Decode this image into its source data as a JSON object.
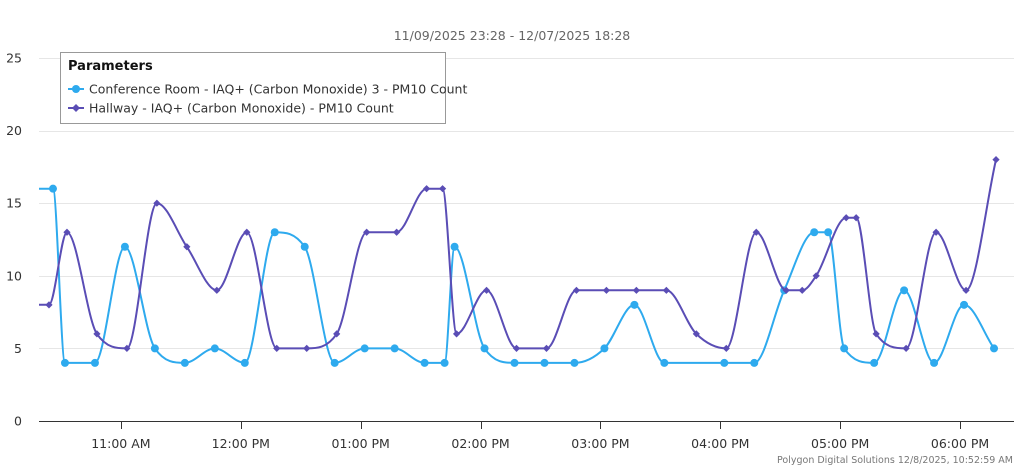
{
  "chart_data": {
    "type": "line",
    "subtitle": "11/09/2025 23:28 - 12/07/2025 18:28",
    "credits": "Polygon Digital Solutions 12/8/2025, 10:52:59 AM",
    "legend_title": "Parameters",
    "legend_position": "top-left",
    "grid": true,
    "ylim": [
      0,
      25
    ],
    "y_ticks": [
      "0",
      "5",
      "10",
      "15",
      "20",
      "25"
    ],
    "x_ticks": [
      {
        "label": "11:00 AM",
        "t": "11:00"
      },
      {
        "label": "12:00 PM",
        "t": "12:00"
      },
      {
        "label": "01:00 PM",
        "t": "13:00"
      },
      {
        "label": "02:00 PM",
        "t": "14:00"
      },
      {
        "label": "03:00 PM",
        "t": "15:00"
      },
      {
        "label": "04:00 PM",
        "t": "16:00"
      },
      {
        "label": "05:00 PM",
        "t": "17:00"
      },
      {
        "label": "06:00 PM",
        "t": "18:00"
      }
    ],
    "xlim": [
      "10:19",
      "18:27"
    ],
    "series": [
      {
        "name": "Conference Room - IAQ+ (Carbon Monoxide) 3 - PM10 Count",
        "color": "#2eaaee",
        "marker": "circle",
        "points": [
          {
            "t": "10:19",
            "y": 16
          },
          {
            "t": "10:26",
            "y": 16
          },
          {
            "t": "10:32",
            "y": 4
          },
          {
            "t": "10:47",
            "y": 4
          },
          {
            "t": "11:02",
            "y": 12
          },
          {
            "t": "11:17",
            "y": 5
          },
          {
            "t": "11:32",
            "y": 4
          },
          {
            "t": "11:47",
            "y": 5
          },
          {
            "t": "12:02",
            "y": 4
          },
          {
            "t": "12:17",
            "y": 13
          },
          {
            "t": "12:32",
            "y": 12
          },
          {
            "t": "12:47",
            "y": 4
          },
          {
            "t": "13:02",
            "y": 5
          },
          {
            "t": "13:17",
            "y": 5
          },
          {
            "t": "13:32",
            "y": 4
          },
          {
            "t": "13:42",
            "y": 4
          },
          {
            "t": "13:47",
            "y": 12
          },
          {
            "t": "14:02",
            "y": 5
          },
          {
            "t": "14:17",
            "y": 4
          },
          {
            "t": "14:32",
            "y": 4
          },
          {
            "t": "14:47",
            "y": 4
          },
          {
            "t": "15:02",
            "y": 5
          },
          {
            "t": "15:17",
            "y": 8
          },
          {
            "t": "15:32",
            "y": 4
          },
          {
            "t": "16:02",
            "y": 4
          },
          {
            "t": "16:17",
            "y": 4
          },
          {
            "t": "16:32",
            "y": 9
          },
          {
            "t": "16:47",
            "y": 13
          },
          {
            "t": "16:54",
            "y": 13
          },
          {
            "t": "17:02",
            "y": 5
          },
          {
            "t": "17:17",
            "y": 4
          },
          {
            "t": "17:32",
            "y": 9
          },
          {
            "t": "17:47",
            "y": 4
          },
          {
            "t": "18:02",
            "y": 8
          },
          {
            "t": "18:17",
            "y": 5
          }
        ]
      },
      {
        "name": "Hallway - IAQ+ (Carbon Monoxide) - PM10 Count",
        "color": "#5a4db5",
        "marker": "diamond",
        "points": [
          {
            "t": "10:19",
            "y": 8
          },
          {
            "t": "10:24",
            "y": 8
          },
          {
            "t": "10:33",
            "y": 13
          },
          {
            "t": "10:48",
            "y": 6
          },
          {
            "t": "11:03",
            "y": 5
          },
          {
            "t": "11:18",
            "y": 15
          },
          {
            "t": "11:33",
            "y": 12
          },
          {
            "t": "11:48",
            "y": 9
          },
          {
            "t": "12:03",
            "y": 13
          },
          {
            "t": "12:18",
            "y": 5
          },
          {
            "t": "12:33",
            "y": 5
          },
          {
            "t": "12:48",
            "y": 6
          },
          {
            "t": "13:03",
            "y": 13
          },
          {
            "t": "13:18",
            "y": 13
          },
          {
            "t": "13:33",
            "y": 16
          },
          {
            "t": "13:41",
            "y": 16
          },
          {
            "t": "13:48",
            "y": 6
          },
          {
            "t": "14:03",
            "y": 9
          },
          {
            "t": "14:18",
            "y": 5
          },
          {
            "t": "14:33",
            "y": 5
          },
          {
            "t": "14:48",
            "y": 9
          },
          {
            "t": "15:03",
            "y": 9
          },
          {
            "t": "15:18",
            "y": 9
          },
          {
            "t": "15:33",
            "y": 9
          },
          {
            "t": "15:48",
            "y": 6
          },
          {
            "t": "16:03",
            "y": 5
          },
          {
            "t": "16:18",
            "y": 13
          },
          {
            "t": "16:33",
            "y": 9
          },
          {
            "t": "16:41",
            "y": 9
          },
          {
            "t": "16:48",
            "y": 10
          },
          {
            "t": "17:03",
            "y": 14
          },
          {
            "t": "17:08",
            "y": 14
          },
          {
            "t": "17:18",
            "y": 6
          },
          {
            "t": "17:33",
            "y": 5
          },
          {
            "t": "17:48",
            "y": 13
          },
          {
            "t": "18:03",
            "y": 9
          },
          {
            "t": "18:18",
            "y": 18
          }
        ]
      }
    ]
  }
}
